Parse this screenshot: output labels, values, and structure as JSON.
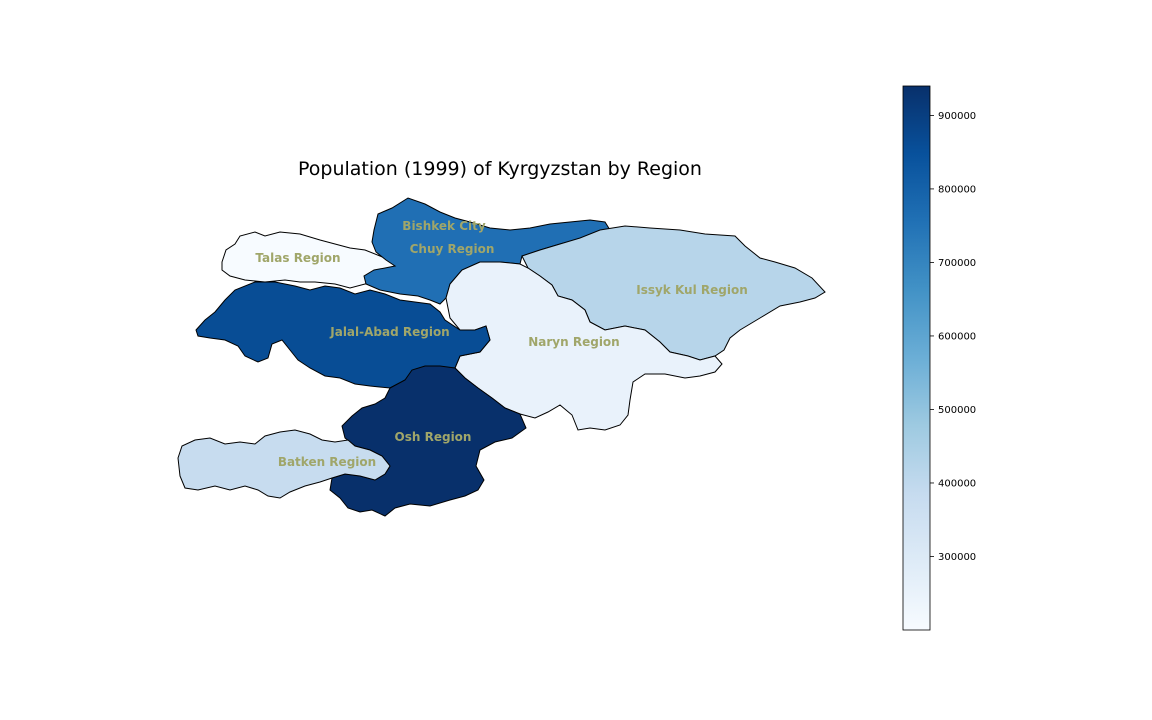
{
  "title": "Population (1999) of Kyrgyzstan by Region",
  "colorbar": {
    "min": 200000,
    "max": 940000,
    "ticks": [
      300000,
      400000,
      500000,
      600000,
      700000,
      800000,
      900000
    ],
    "tick_labels": [
      "300000",
      "400000",
      "500000",
      "600000",
      "700000",
      "800000",
      "900000"
    ],
    "colormap": "Blues"
  },
  "label_color": "#a0a66a",
  "regions": [
    {
      "name": "Talas Region",
      "value": 200000
    },
    {
      "name": "Bishkek City",
      "value": 760000
    },
    {
      "name": "Chuy Region",
      "value": 760000
    },
    {
      "name": "Issyk Kul Region",
      "value": 420000
    },
    {
      "name": "Jalal-Abad Region",
      "value": 860000
    },
    {
      "name": "Naryn Region",
      "value": 250000
    },
    {
      "name": "Osh Region",
      "value": 940000
    },
    {
      "name": "Batken Region",
      "value": 380000
    }
  ]
}
